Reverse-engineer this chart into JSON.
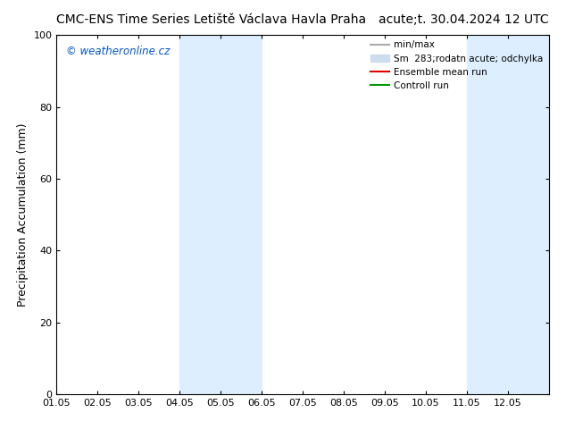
{
  "title_left": "CMC-ENS Time Series Letiště Václava Havla Praha",
  "title_right": "acute;t. 30.04.2024 12 UTC",
  "ylabel": "Precipitation Accumulation (mm)",
  "watermark": "© weatheronline.cz",
  "watermark_color": "#0055cc",
  "ylim": [
    0,
    100
  ],
  "xlim_start": 0,
  "xlim_end": 12,
  "xtick_labels": [
    "01.05",
    "02.05",
    "03.05",
    "04.05",
    "05.05",
    "06.05",
    "07.05",
    "08.05",
    "09.05",
    "10.05",
    "11.05",
    "12.05"
  ],
  "xtick_positions": [
    0,
    1,
    2,
    3,
    4,
    5,
    6,
    7,
    8,
    9,
    10,
    11
  ],
  "shaded_regions": [
    {
      "xmin": 3.0,
      "xmax": 5.0
    },
    {
      "xmin": 10.0,
      "xmax": 12.0
    }
  ],
  "shade_color": "#ddeeff",
  "background_color": "#ffffff",
  "legend_entries": [
    {
      "label": "min/max",
      "color": "#aaaaaa",
      "lw": 1.5,
      "type": "line"
    },
    {
      "label": "Sm  283;rodatn acute; odchylka",
      "color": "#ccddee",
      "lw": 8,
      "type": "patch"
    },
    {
      "label": "Ensemble mean run",
      "color": "#dd0000",
      "lw": 1.5,
      "type": "line"
    },
    {
      "label": "Controll run",
      "color": "#009900",
      "lw": 1.5,
      "type": "line"
    }
  ],
  "title_fontsize": 10,
  "tick_fontsize": 8,
  "ylabel_fontsize": 9
}
